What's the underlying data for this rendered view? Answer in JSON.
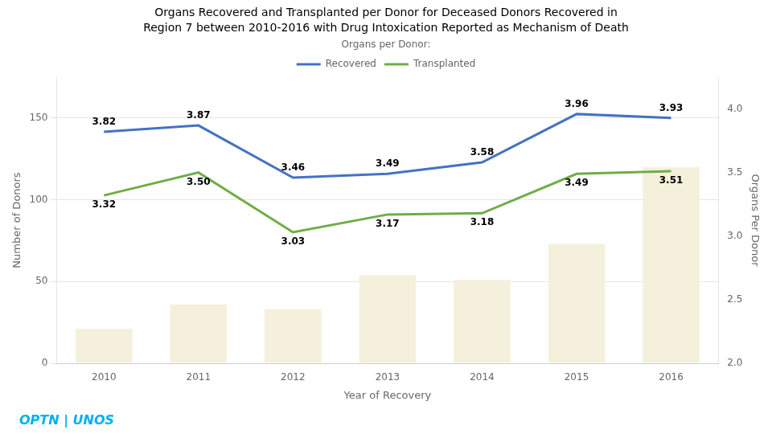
{
  "chart_data": {
    "type": "bar",
    "title": "Organs Recovered and Transplanted per Donor for Deceased Donors Recovered in",
    "subtitle": "Region 7 between 2010-2016 with Drug Intoxication Reported as Mechanism of Death",
    "x_label": "Year of Recovery",
    "y_label": "Number of Donors",
    "y2_label": "Organs Per Donor",
    "categories": [
      "2010",
      "2011",
      "2012",
      "2013",
      "2014",
      "2015",
      "2016"
    ],
    "series": [
      {
        "type": "bar",
        "color": "#f5f0dc",
        "values": [
          21,
          36,
          33,
          54,
          51,
          73,
          120
        ]
      },
      {
        "name": "Recovered",
        "type": "line",
        "axis": "y2",
        "color": "#4472c4",
        "values": [
          3.82,
          3.87,
          3.46,
          3.49,
          3.58,
          3.96,
          3.93
        ],
        "value_labels": [
          "3.82",
          "3.87",
          "3.46",
          "3.49",
          "3.58",
          "3.96",
          "3.93"
        ],
        "data_labels": true
      },
      {
        "name": "Transplanted",
        "type": "line",
        "axis": "y2",
        "color": "#70ad47",
        "values": [
          3.32,
          3.5,
          3.03,
          3.17,
          3.18,
          3.49,
          3.51
        ],
        "value_labels": [
          "3.32",
          "3.50",
          "3.03",
          "3.17",
          "3.18",
          "3.49",
          "3.51"
        ],
        "data_labels": true
      }
    ],
    "ylim": [
      0,
      175
    ],
    "yticks": [
      0,
      50,
      100,
      150
    ],
    "y2lim": [
      2.0,
      4.25
    ],
    "y2ticks": [
      {
        "value": 2.0,
        "label": "2.0"
      },
      2.5,
      {
        "value": 3.0,
        "label": "3.0"
      },
      3.5,
      {
        "value": 4.0,
        "label": "4.0"
      }
    ],
    "grid": true,
    "legend": "top",
    "legend_title": "Organs per Donor:",
    "annotations": [
      {
        "text": "OPTN | UNOS",
        "color": "#00b0f0"
      }
    ]
  }
}
